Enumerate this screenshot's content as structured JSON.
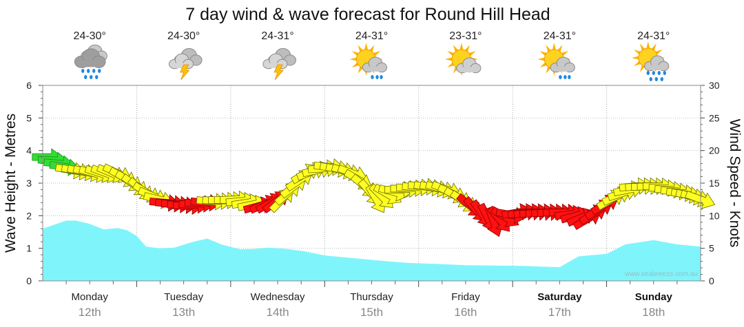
{
  "chart_data": {
    "type": "area",
    "title": "7 day wind & wave forecast for Round Hill Head",
    "ylabel_left": "Wave Height - Metres",
    "ylabel_right": "Wind Speed - Knots",
    "ylim_left": [
      0,
      6
    ],
    "ylim_right": [
      0,
      30
    ],
    "yticks_left": [
      "0",
      "1",
      "2",
      "3",
      "4",
      "5",
      "6"
    ],
    "yticks_right": [
      "0",
      "5",
      "10",
      "15",
      "20",
      "25",
      "30"
    ],
    "watermark": "www.seabreeze.com.au",
    "days": [
      {
        "name": "Monday",
        "date": "12th",
        "temp": "24-30°",
        "icon": "rain-cloud-icon",
        "bold": false
      },
      {
        "name": "Tuesday",
        "date": "13th",
        "temp": "24-30°",
        "icon": "thunderstorm-icon",
        "bold": false
      },
      {
        "name": "Wednesday",
        "date": "14th",
        "temp": "24-31°",
        "icon": "thunderstorm-icon",
        "bold": false
      },
      {
        "name": "Thursday",
        "date": "15th",
        "temp": "24-31°",
        "icon": "sun-cloud-shower-icon",
        "bold": false
      },
      {
        "name": "Friday",
        "date": "16th",
        "temp": "23-31°",
        "icon": "partly-cloudy-icon",
        "bold": false
      },
      {
        "name": "Saturday",
        "date": "17th",
        "temp": "24-31°",
        "icon": "sun-cloud-shower-icon",
        "bold": true
      },
      {
        "name": "Sunday",
        "date": "18th",
        "temp": "24-31°",
        "icon": "sun-cloud-rain-icon",
        "bold": true
      }
    ],
    "wave_series": {
      "name": "Wave Height",
      "color": "#7ff5fb",
      "x": [
        0.0,
        0.25,
        0.35,
        0.5,
        0.65,
        0.8,
        0.9,
        1.0,
        1.1,
        1.25,
        1.4,
        1.6,
        1.75,
        1.9,
        2.1,
        2.25,
        2.4,
        2.6,
        2.8,
        3.0,
        3.3,
        3.6,
        3.9,
        4.2,
        4.5,
        4.8,
        5.1,
        5.3,
        5.5,
        5.7,
        5.8,
        6.0,
        6.2,
        6.5,
        6.75,
        7.0
      ],
      "values": [
        1.6,
        1.85,
        1.85,
        1.75,
        1.58,
        1.62,
        1.55,
        1.38,
        1.05,
        1.0,
        1.02,
        1.2,
        1.3,
        1.12,
        0.97,
        0.98,
        1.02,
        0.98,
        0.9,
        0.78,
        0.7,
        0.62,
        0.55,
        0.52,
        0.48,
        0.47,
        0.46,
        0.44,
        0.42,
        0.75,
        0.78,
        0.83,
        1.12,
        1.25,
        1.12,
        1.05
      ]
    },
    "wind_series": {
      "name": "Wind Speed",
      "colors": {
        "strong": "#33dd33",
        "moderate": "#ffff22",
        "light": "#ff1111"
      },
      "x": [
        0.05,
        0.3,
        0.55,
        0.8,
        1.05,
        1.3,
        1.55,
        1.8,
        2.05,
        2.3,
        2.55,
        2.8,
        3.05,
        3.3,
        3.55,
        3.8,
        4.05,
        4.3,
        4.55,
        4.8,
        5.05,
        5.3,
        5.55,
        5.8,
        6.05,
        6.3,
        6.55,
        6.8,
        7.0
      ],
      "values": [
        19,
        17,
        16.5,
        16.5,
        14,
        12,
        11.5,
        12.2,
        12.5,
        11.5,
        12.5,
        16.5,
        17.5,
        16.5,
        12.5,
        14,
        14.5,
        14,
        11.5,
        9,
        10.5,
        10.5,
        10.5,
        9.5,
        12.5,
        14.5,
        14.5,
        13.5,
        12.5
      ],
      "direction_deg": [
        90,
        100,
        105,
        115,
        130,
        95,
        92,
        95,
        88,
        75,
        45,
        60,
        95,
        110,
        150,
        90,
        95,
        110,
        130,
        160,
        80,
        85,
        90,
        60,
        60,
        85,
        90,
        95,
        110
      ],
      "level": [
        "strong",
        "moderate",
        "moderate",
        "moderate",
        "moderate",
        "light",
        "light",
        "moderate",
        "moderate",
        "light",
        "moderate",
        "moderate",
        "moderate",
        "moderate",
        "moderate",
        "moderate",
        "moderate",
        "moderate",
        "light",
        "light",
        "light",
        "light",
        "light",
        "light",
        "moderate",
        "moderate",
        "moderate",
        "moderate",
        "moderate"
      ]
    },
    "grid": true
  }
}
